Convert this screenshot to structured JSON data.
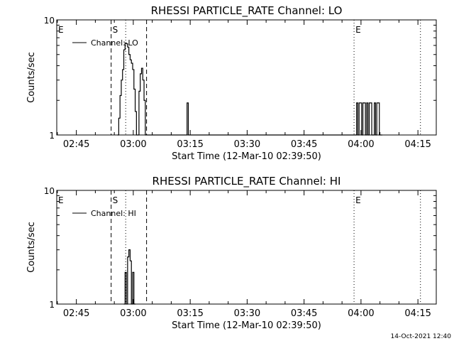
{
  "chart_data": [
    {
      "type": "line",
      "title": "RHESSI PARTICLE_RATE Channel: LO",
      "xlabel": "Start Time (12-Mar-10 02:39:50)",
      "ylabel": "Counts/sec",
      "yscale": "log",
      "ylim": [
        1,
        10
      ],
      "xlim": [
        "02:39:50",
        "04:19:50"
      ],
      "x_ticks": [
        "02:45",
        "03:00",
        "03:15",
        "03:30",
        "03:45",
        "04:00",
        "04:15"
      ],
      "y_ticks": [
        "1",
        "10"
      ],
      "markers": [
        {
          "label": "E",
          "time": "02:39:50",
          "style": "dotted"
        },
        {
          "label": "S",
          "time": "02:54:10",
          "style": "dashed"
        },
        {
          "label": "",
          "time": "02:58:00",
          "style": "dotted"
        },
        {
          "label": "",
          "time": "03:03:30",
          "style": "dashed"
        },
        {
          "label": "E",
          "time": "03:58:10",
          "style": "dotted"
        },
        {
          "label": "",
          "time": "04:15:40",
          "style": "dotted"
        }
      ],
      "series": [
        {
          "name": "Channel: LO",
          "x": [
            "02:55:50",
            "02:56:10",
            "02:56:30",
            "02:56:50",
            "02:57:10",
            "02:57:30",
            "02:57:50",
            "02:58:10",
            "02:58:30",
            "02:58:50",
            "02:59:10",
            "02:59:30",
            "02:59:50",
            "03:00:10",
            "03:00:30",
            "03:00:50",
            "03:01:10",
            "03:01:30",
            "03:01:50",
            "03:02:10",
            "03:02:30",
            "03:02:50",
            "03:03:10",
            "03:03:30",
            "03:03:50",
            "03:04:10",
            "03:04:30",
            "03:13:50",
            "03:14:10",
            "03:14:30",
            "03:58:30",
            "03:58:50",
            "03:59:10",
            "03:59:30",
            "03:59:50",
            "04:00:10",
            "04:00:30",
            "04:00:50",
            "04:01:10",
            "04:01:30",
            "04:01:50",
            "04:02:10",
            "04:02:30",
            "04:02:50",
            "04:03:10",
            "04:03:30",
            "04:03:50",
            "04:04:10",
            "04:04:30",
            "04:04:50",
            "04:05:10"
          ],
          "y": [
            1,
            1.4,
            2.2,
            3,
            3.7,
            5.5,
            6.3,
            6.2,
            5.8,
            5,
            4.5,
            4.2,
            3.7,
            2.5,
            1.6,
            1,
            1,
            2.4,
            3.4,
            3.8,
            3,
            2,
            1,
            1,
            1,
            1,
            1,
            1,
            1.9,
            1,
            1,
            1.9,
            1,
            1.9,
            1.9,
            1,
            1.9,
            1.9,
            1,
            1.9,
            1,
            1.9,
            1.9,
            1,
            1,
            1.9,
            1,
            1.9,
            1.9,
            1,
            1
          ]
        }
      ]
    },
    {
      "type": "line",
      "title": "RHESSI PARTICLE_RATE Channel: HI",
      "xlabel": "Start Time (12-Mar-10 02:39:50)",
      "ylabel": "Counts/sec",
      "yscale": "log",
      "ylim": [
        1,
        10
      ],
      "xlim": [
        "02:39:50",
        "04:19:50"
      ],
      "x_ticks": [
        "02:45",
        "03:00",
        "03:15",
        "03:30",
        "03:45",
        "04:00",
        "04:15"
      ],
      "y_ticks": [
        "1",
        "10"
      ],
      "markers": [
        {
          "label": "E",
          "time": "02:39:50",
          "style": "dotted"
        },
        {
          "label": "S",
          "time": "02:54:10",
          "style": "dashed"
        },
        {
          "label": "",
          "time": "02:58:00",
          "style": "dotted"
        },
        {
          "label": "",
          "time": "03:03:30",
          "style": "dashed"
        },
        {
          "label": "E",
          "time": "03:58:10",
          "style": "dotted"
        },
        {
          "label": "",
          "time": "04:15:40",
          "style": "dotted"
        }
      ],
      "series": [
        {
          "name": "Channel: HI",
          "x": [
            "02:57:30",
            "02:57:50",
            "02:58:10",
            "02:58:30",
            "02:58:50",
            "02:59:10",
            "02:59:30",
            "02:59:50",
            "03:00:10"
          ],
          "y": [
            1,
            1.9,
            1,
            2.6,
            3,
            2.4,
            1,
            1.9,
            1
          ]
        }
      ]
    }
  ],
  "footer": {
    "stamp": "14-Oct-2021 12:40"
  }
}
